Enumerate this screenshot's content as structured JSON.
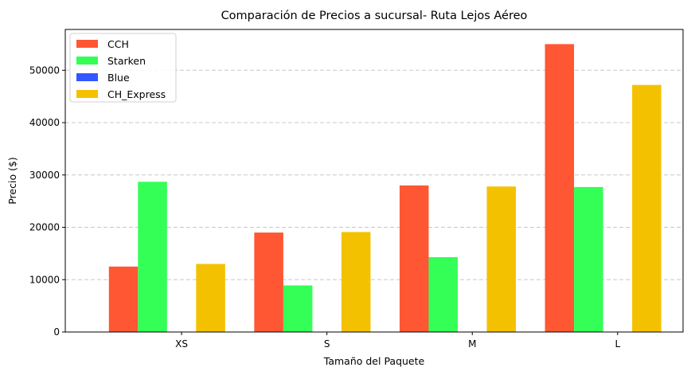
{
  "chart_data": {
    "type": "bar",
    "title": "Comparación de Precios a sucursal- Ruta Lejos Aéreo",
    "xlabel": "Tamaño del Paquete",
    "ylabel": "Precio ($)",
    "categories": [
      "XS",
      "S",
      "M",
      "L"
    ],
    "ylim": [
      0,
      57800
    ],
    "yticks": [
      0,
      10000,
      20000,
      30000,
      40000,
      50000
    ],
    "grid": "y-dashed",
    "legend_position": "top-left",
    "series": [
      {
        "name": "CCH",
        "color": "#ff5733",
        "values": [
          12500,
          19000,
          28000,
          55000
        ]
      },
      {
        "name": "Starken",
        "color": "#33ff57",
        "values": [
          28700,
          8900,
          14300,
          27700
        ]
      },
      {
        "name": "Blue",
        "color": "#3357ff",
        "values": [
          0,
          0,
          0,
          0
        ]
      },
      {
        "name": "CH_Express",
        "color": "#f4c100",
        "values": [
          13000,
          19100,
          27800,
          47200
        ]
      }
    ]
  }
}
